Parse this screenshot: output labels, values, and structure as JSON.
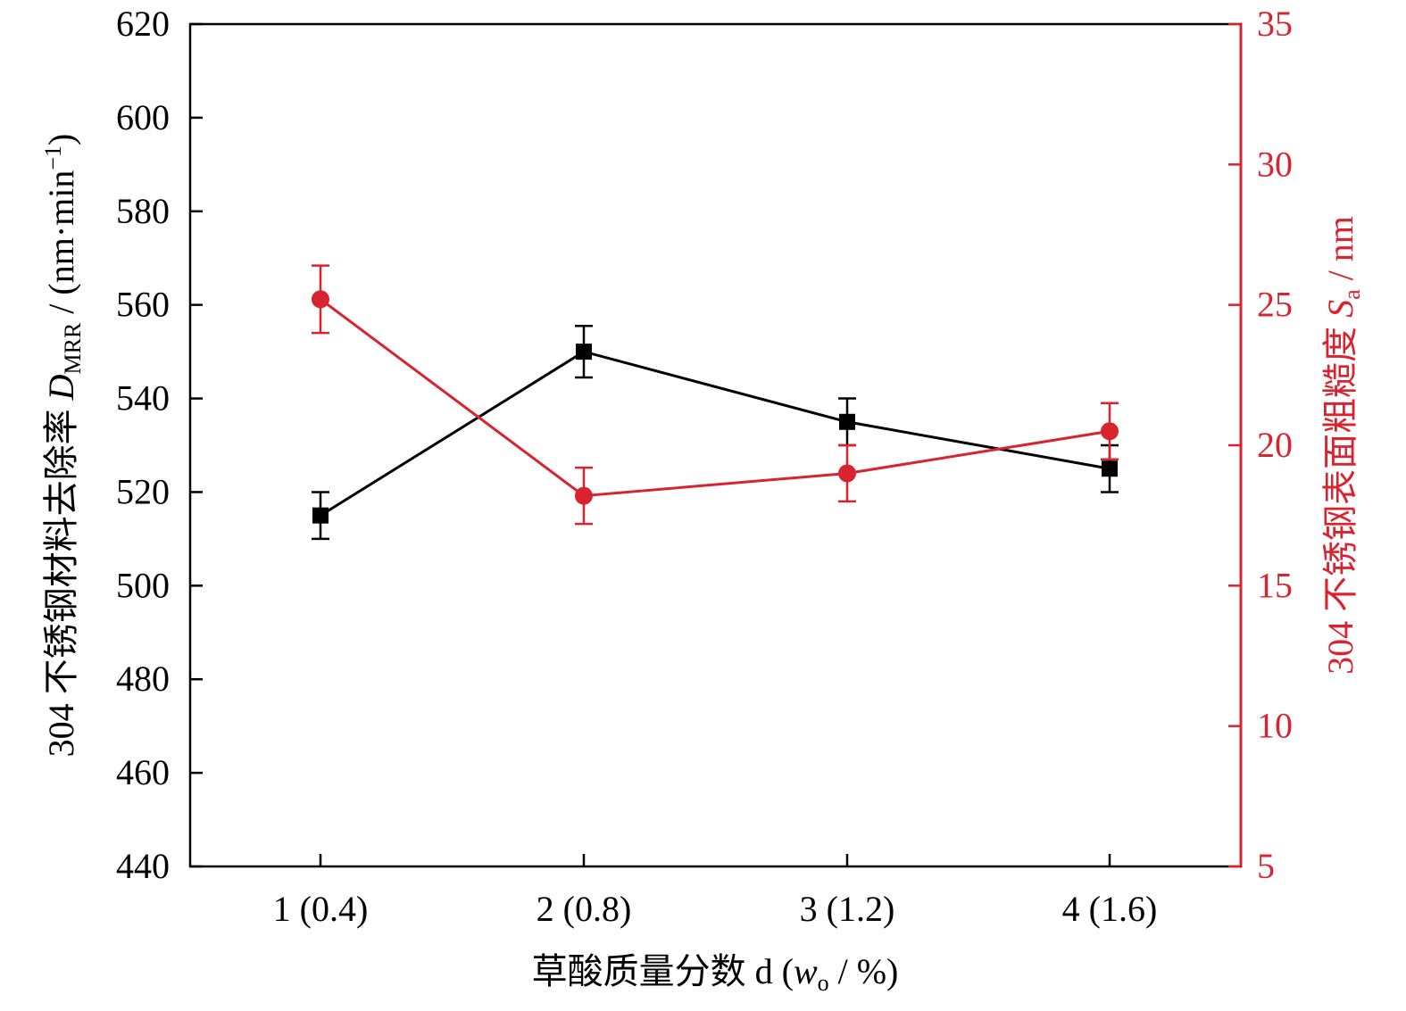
{
  "chart_data": {
    "type": "line",
    "categories": [
      "1 (0.4)",
      "2 (0.8)",
      "3 (1.2)",
      "4 (1.6)"
    ],
    "x_axis": {
      "label_main": "草酸质量分数 d (",
      "label_var": "w",
      "label_sub": "o",
      "label_end": " / %)"
    },
    "y_left": {
      "label_main": "304 不锈钢材料去除率 ",
      "label_var": "D",
      "label_sub": "MRR",
      "label_unit": " / (nm·min",
      "label_sup": "−1",
      "label_end": ")",
      "range": [
        440,
        620
      ],
      "ticks": [
        440,
        460,
        480,
        500,
        520,
        540,
        560,
        580,
        600,
        620
      ],
      "color": "#000000"
    },
    "y_right": {
      "label_main": "304 不锈钢表面粗糙度 ",
      "label_var": "S",
      "label_sub": "a",
      "label_end": " / nm",
      "range": [
        5,
        35
      ],
      "ticks": [
        5,
        10,
        15,
        20,
        25,
        30,
        35
      ],
      "color": "#d9232e"
    },
    "series": [
      {
        "axis": "left",
        "marker": "square",
        "color": "#000000",
        "values": [
          515,
          550,
          535,
          525
        ],
        "errors": [
          5,
          5.5,
          5,
          5
        ]
      },
      {
        "axis": "right",
        "marker": "circle",
        "color": "#d9232e",
        "values": [
          25.2,
          18.2,
          19.0,
          20.5
        ],
        "errors": [
          1.2,
          1.0,
          1.0,
          1.0
        ]
      }
    ],
    "grid": false,
    "legend": "none"
  }
}
